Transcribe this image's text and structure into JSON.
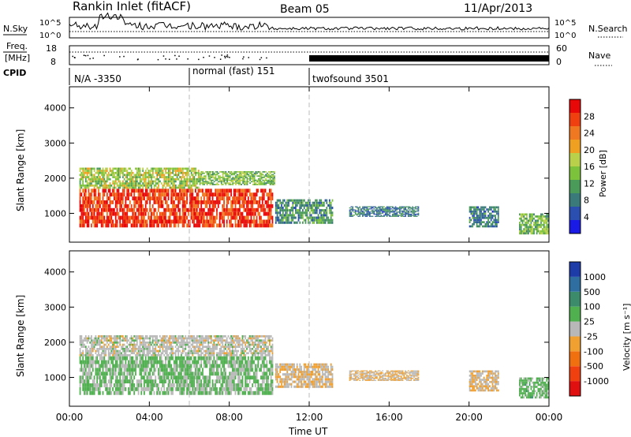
{
  "header": {
    "station": "Rankin Inlet (fitACF)",
    "beam": "Beam 05",
    "date": "11/Apr/2013"
  },
  "strip": {
    "nsky_label": "N.Sky",
    "nsky_ticks": [
      "10^5",
      "10^0"
    ],
    "nsearch_label": "N.Search",
    "nsearch_ticks": [
      "10^5",
      "10^0"
    ],
    "freq_label": "Freq.",
    "freq_unit": "[MHz]",
    "freq_ticks": [
      "18",
      "8"
    ],
    "nave_label": "Nave",
    "nave_ticks": [
      "60",
      "0"
    ],
    "cpid_label": "CPID",
    "cpid_segments": [
      {
        "start_h": 0,
        "end_h": 6,
        "label": "N/A -3350"
      },
      {
        "start_h": 6,
        "end_h": 12,
        "label": "normal (fast) 151"
      },
      {
        "start_h": 12,
        "end_h": 24,
        "label": "twofsound 3501"
      }
    ]
  },
  "panels": {
    "power": {
      "ylabel": "Slant Range [km]",
      "yticks": [
        "1000",
        "2000",
        "3000",
        "4000"
      ],
      "colorbar_label": "Power [dB]",
      "colorbar_ticks": [
        "4",
        "8",
        "12",
        "16",
        "20",
        "24",
        "28"
      ],
      "colors": [
        "#1a1ae6",
        "#2a4fb0",
        "#3a7a7a",
        "#4a9a5a",
        "#7cc23a",
        "#b8d04a",
        "#f0a020",
        "#f07820",
        "#f04010",
        "#e80808"
      ]
    },
    "velocity": {
      "ylabel": "Slant Range [km]",
      "yticks": [
        "1000",
        "2000",
        "3000",
        "4000"
      ],
      "colorbar_label": "Velocity [m s⁻¹]",
      "colorbar_ticks": [
        "1000",
        "500",
        "100",
        "25",
        "-25",
        "-100",
        "-500",
        "-1000"
      ],
      "colors": [
        "#1e3ca8",
        "#2e6ea0",
        "#3c8c6c",
        "#50b050",
        "#b8b8b8",
        "#f0a030",
        "#f07010",
        "#f04010",
        "#e01010"
      ]
    }
  },
  "xaxis": {
    "label": "Time UT",
    "ticks": [
      "00:00",
      "04:00",
      "08:00",
      "12:00",
      "16:00",
      "20:00",
      "00:00"
    ]
  },
  "chart_data": [
    {
      "type": "heatmap",
      "title": "Power [dB]",
      "xlabel": "Time UT",
      "ylabel": "Slant Range [km]",
      "xlim_hours": [
        0,
        24
      ],
      "ylim_km": [
        180,
        4600
      ],
      "clim_db": [
        0,
        32
      ],
      "blobs": [
        {
          "t0": 0.5,
          "t1": 10.2,
          "r0": 600,
          "r1": 1700,
          "value": 28
        },
        {
          "t0": 0.5,
          "t1": 6.5,
          "r0": 1700,
          "r1": 2300,
          "value": 16
        },
        {
          "t0": 6.5,
          "t1": 10.3,
          "r0": 1800,
          "r1": 2200,
          "value": 14
        },
        {
          "t0": 10.3,
          "t1": 13.2,
          "r0": 700,
          "r1": 1400,
          "value": 10
        },
        {
          "t0": 14.0,
          "t1": 17.5,
          "r0": 900,
          "r1": 1200,
          "value": 8
        },
        {
          "t0": 20.0,
          "t1": 21.5,
          "r0": 600,
          "r1": 1200,
          "value": 8
        },
        {
          "t0": 22.5,
          "t1": 24.0,
          "r0": 400,
          "r1": 1000,
          "value": 14
        }
      ]
    },
    {
      "type": "heatmap",
      "title": "Velocity [m s⁻¹]",
      "xlabel": "Time UT",
      "ylabel": "Slant Range [km]",
      "xlim_hours": [
        0,
        24
      ],
      "ylim_km": [
        180,
        4600
      ],
      "clim_ms": [
        -1000,
        1000
      ],
      "blobs": [
        {
          "t0": 0.5,
          "t1": 10.2,
          "r0": 1600,
          "r1": 2200,
          "value": 0
        },
        {
          "t0": 0.5,
          "t1": 10.2,
          "r0": 500,
          "r1": 1600,
          "value": 150
        },
        {
          "t0": 10.3,
          "t1": 13.2,
          "r0": 700,
          "r1": 1400,
          "value": -100
        },
        {
          "t0": 14.0,
          "t1": 17.5,
          "r0": 900,
          "r1": 1200,
          "value": -100
        },
        {
          "t0": 20.0,
          "t1": 21.5,
          "r0": 600,
          "r1": 1200,
          "value": -100
        },
        {
          "t0": 22.5,
          "t1": 24.0,
          "r0": 400,
          "r1": 1000,
          "value": 200
        }
      ]
    }
  ]
}
